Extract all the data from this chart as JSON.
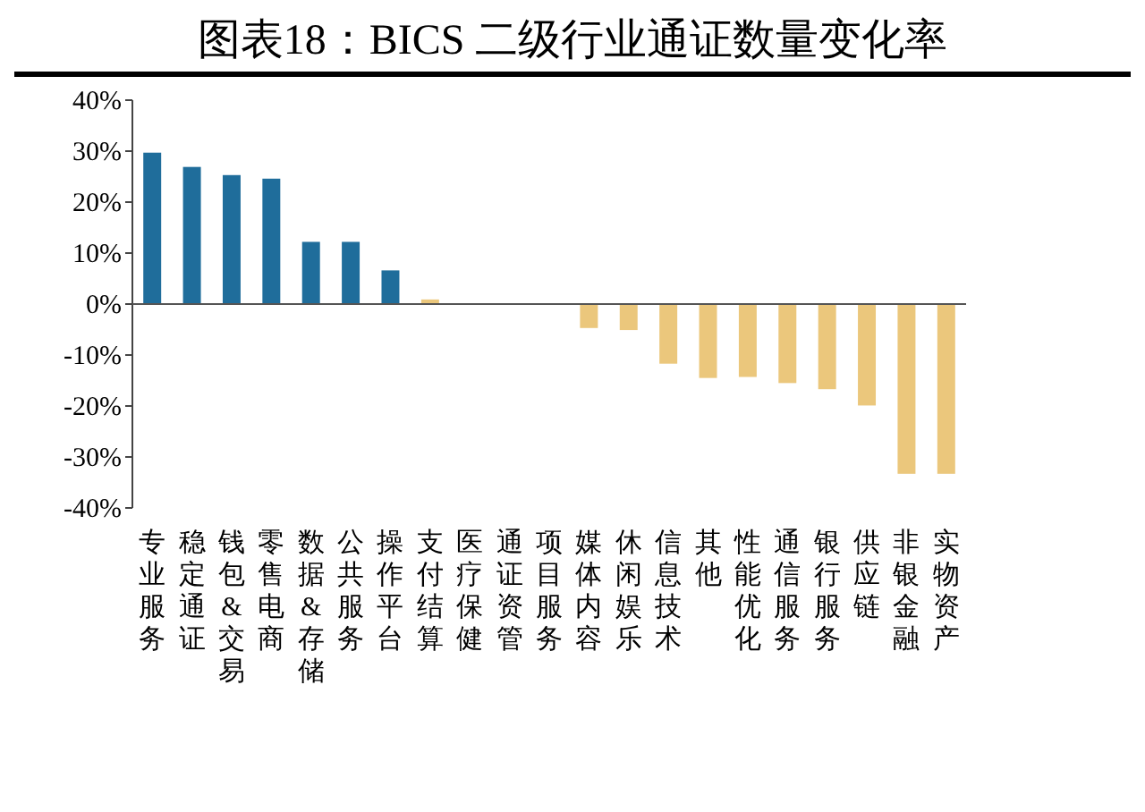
{
  "chart_data": {
    "type": "bar",
    "title": "图表18：BICS 二级行业通证数量变化率",
    "categories": [
      "专业服务",
      "稳定通证",
      "钱包&交易",
      "零售电商",
      "数据&存储",
      "公共服务",
      "操作平台",
      "支付结算",
      "医疗保健",
      "通证资管",
      "项目服务",
      "媒体内容",
      "休闲娱乐",
      "信息技术",
      "其他",
      "性能优化",
      "通信服务",
      "银行服务",
      "供应链",
      "非银金融",
      "实物资产"
    ],
    "values": [
      29.7,
      26.9,
      25.3,
      24.6,
      12.2,
      12.2,
      6.6,
      0.9,
      0,
      0,
      0,
      -4.7,
      -5.1,
      -11.7,
      -14.5,
      -14.3,
      -15.5,
      -16.7,
      -19.9,
      -33.3,
      -33.3
    ],
    "colors": [
      "#1f6d9b",
      "#1f6d9b",
      "#1f6d9b",
      "#1f6d9b",
      "#1f6d9b",
      "#1f6d9b",
      "#1f6d9b",
      "#ebc77c",
      "#ebc77c",
      "#ebc77c",
      "#ebc77c",
      "#ebc77c",
      "#ebc77c",
      "#ebc77c",
      "#ebc77c",
      "#ebc77c",
      "#ebc77c",
      "#ebc77c",
      "#ebc77c",
      "#ebc77c",
      "#ebc77c"
    ],
    "ylim": [
      -40,
      40
    ],
    "yticks": [
      {
        "value": 40,
        "label": "40%"
      },
      {
        "value": 30,
        "label": "30%"
      },
      {
        "value": 20,
        "label": "20%"
      },
      {
        "value": 10,
        "label": "10%"
      },
      {
        "value": 0,
        "label": "0%"
      },
      {
        "value": -10,
        "label": "-10%"
      },
      {
        "value": -20,
        "label": "-20%"
      },
      {
        "value": -30,
        "label": "-30%"
      },
      {
        "value": -40,
        "label": "-40%"
      }
    ]
  }
}
